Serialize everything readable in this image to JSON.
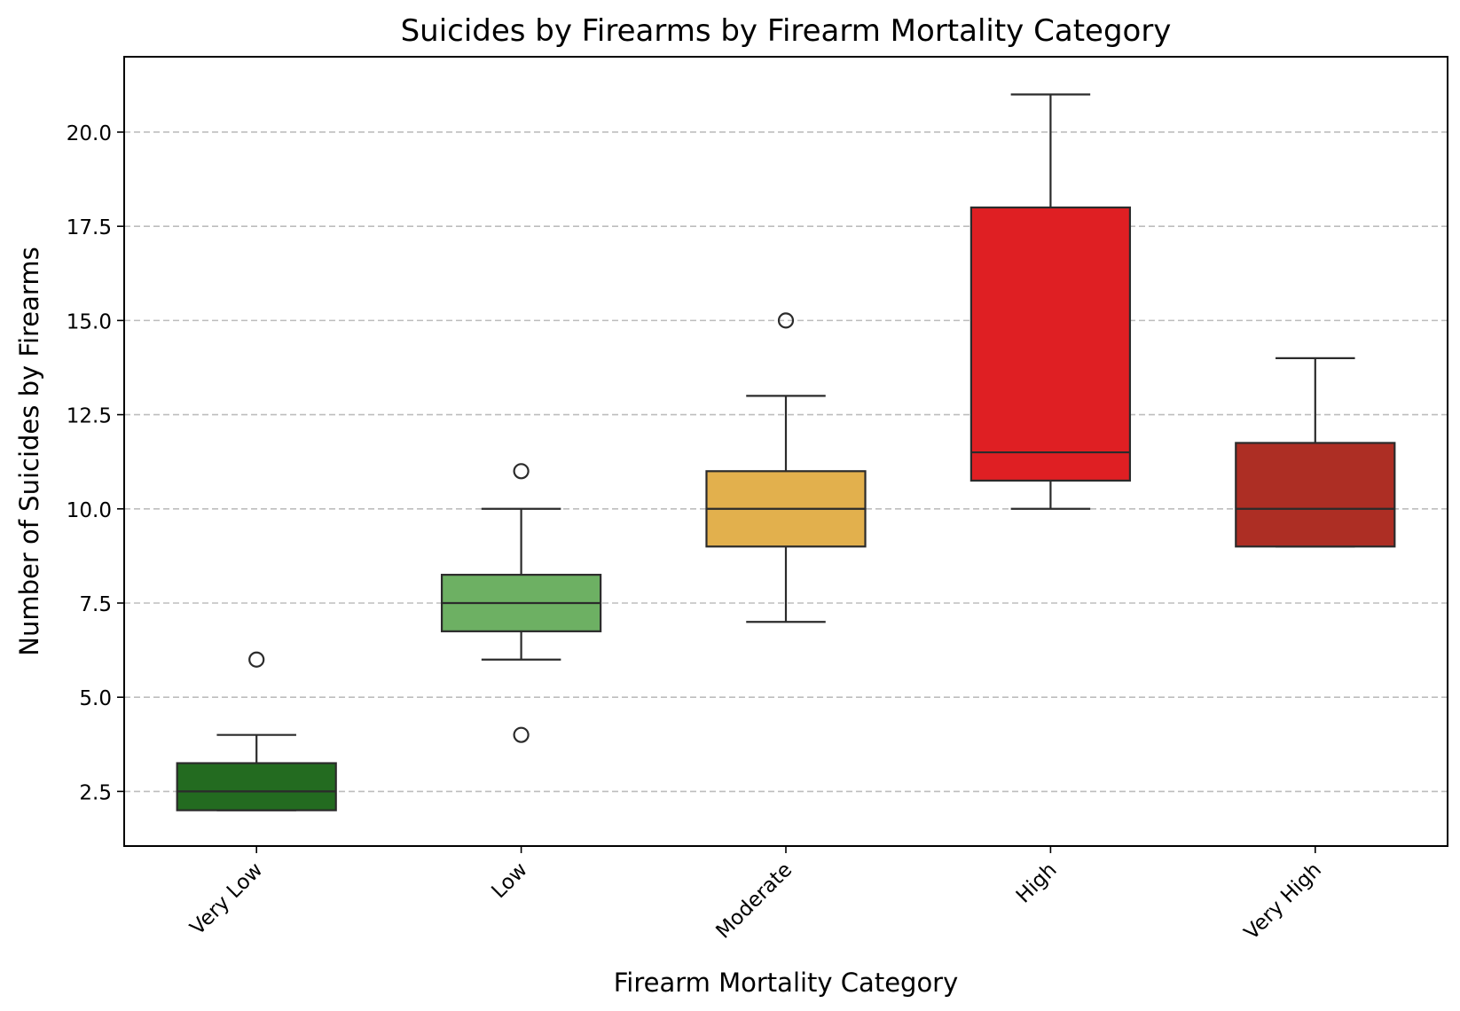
{
  "chart_data": {
    "type": "box",
    "title": "Suicides by Firearms by Firearm Mortality Category",
    "xlabel": "Firearm Mortality Category",
    "ylabel": "Number of Suicides by Firearms",
    "ylim": [
      1.05,
      22.0
    ],
    "yticks": [
      2.5,
      5.0,
      7.5,
      10.0,
      12.5,
      15.0,
      17.5,
      20.0
    ],
    "ytick_labels": [
      "2.5",
      "5.0",
      "7.5",
      "10.0",
      "12.5",
      "15.0",
      "17.5",
      "20.0"
    ],
    "grid": "horizontal dashed",
    "categories": [
      "Very Low",
      "Low",
      "Moderate",
      "High",
      "Very High"
    ],
    "boxes": [
      {
        "category": "Very Low",
        "whisker_low": 2,
        "q1": 2,
        "median": 2.5,
        "q3": 3.25,
        "whisker_high": 4,
        "outliers": [
          6
        ],
        "color": "#236b20"
      },
      {
        "category": "Low",
        "whisker_low": 6,
        "q1": 6.75,
        "median": 7.5,
        "q3": 8.25,
        "whisker_high": 10,
        "outliers": [
          4,
          11
        ],
        "color": "#6db063"
      },
      {
        "category": "Moderate",
        "whisker_low": 7,
        "q1": 9,
        "median": 10,
        "q3": 11,
        "whisker_high": 13,
        "outliers": [
          15
        ],
        "color": "#e2b04d"
      },
      {
        "category": "High",
        "whisker_low": 10,
        "q1": 10.75,
        "median": 11.5,
        "q3": 18,
        "whisker_high": 21,
        "outliers": [],
        "color": "#df1f23"
      },
      {
        "category": "Very High",
        "whisker_low": 9,
        "q1": 9,
        "median": 10,
        "q3": 11.75,
        "whisker_high": 14,
        "outliers": [],
        "color": "#ad2e24"
      }
    ]
  }
}
